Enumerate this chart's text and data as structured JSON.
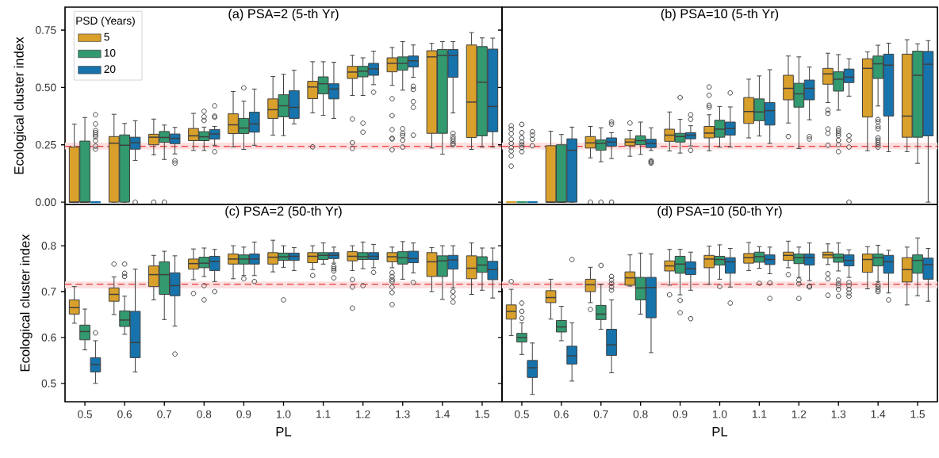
{
  "chart_data": [
    {
      "type": "box",
      "title": "(a) PSA=2 (5-th Yr)",
      "ylabel": "Ecological cluster index",
      "categories": [
        "0.5",
        "0.6",
        "0.7",
        "0.8",
        "0.9",
        "1.0",
        "1.1",
        "1.2",
        "1.3",
        "1.4",
        "1.5"
      ],
      "ylim": [
        -0.01,
        0.85
      ],
      "yticks": [
        {
          "value": 0,
          "label": "0.00"
        },
        {
          "value": 0.25,
          "label": "0.25"
        },
        {
          "value": 0.5,
          "label": "0.50"
        },
        {
          "value": 0.75,
          "label": "0.75"
        }
      ],
      "tick_labels": "y",
      "legend": "top left",
      "legend_title": "PSD (Years)",
      "ref_lines": [
        {
          "axis": "y",
          "value": 0.243,
          "color": "#e8474a",
          "line_style": "dashed"
        }
      ],
      "bands": [
        {
          "axis": "y",
          "from": 0.23,
          "to": 0.259,
          "color": "#fde0e0"
        }
      ],
      "series": [
        {
          "name": "5",
          "color": "#d9a02b",
          "boxes": [
            {
              "low": 0,
              "q1": 0,
              "median": 0,
              "q3": 0.24,
              "high": 0.34
            },
            {
              "low": 0,
              "q1": 0,
              "median": 0.257,
              "q3": 0.286,
              "high": 0.383
            },
            {
              "low": 0.206,
              "q1": 0.25,
              "median": 0.283,
              "q3": 0.296,
              "high": 0.362,
              "outliers": [
                0
              ]
            },
            {
              "low": 0.225,
              "q1": 0.268,
              "median": 0.289,
              "q3": 0.321,
              "high": 0.387
            },
            {
              "low": 0.241,
              "q1": 0.299,
              "median": 0.337,
              "q3": 0.385,
              "high": 0.482
            },
            {
              "low": 0.292,
              "q1": 0.365,
              "median": 0.403,
              "q3": 0.45,
              "high": 0.548
            },
            {
              "low": 0.389,
              "q1": 0.451,
              "median": 0.502,
              "q3": 0.527,
              "high": 0.612,
              "outliers": [
                0.241
              ]
            },
            {
              "low": 0.465,
              "q1": 0.539,
              "median": 0.567,
              "q3": 0.592,
              "high": 0.64,
              "outliers": [
                0.362,
                0.259,
                0.234
              ]
            },
            {
              "low": 0.509,
              "q1": 0.568,
              "median": 0.605,
              "q3": 0.629,
              "high": 0.674,
              "outliers": [
                0.451,
                0.377,
                0.316,
                0.279,
                0.275,
                0.228
              ]
            },
            {
              "low": 0.236,
              "q1": 0.3,
              "median": 0.633,
              "q3": 0.66,
              "high": 0.692
            },
            {
              "low": 0.23,
              "q1": 0.282,
              "median": 0.436,
              "q3": 0.685,
              "high": 0.739
            }
          ]
        },
        {
          "name": "10",
          "color": "#33996f",
          "boxes": [
            {
              "low": 0,
              "q1": 0,
              "median": 0,
              "q3": 0.266,
              "high": 0.369
            },
            {
              "low": 0,
              "q1": 0,
              "median": 0.248,
              "q3": 0.293,
              "high": 0.343
            },
            {
              "low": 0.186,
              "q1": 0.261,
              "median": 0.282,
              "q3": 0.308,
              "high": 0.336,
              "outliers": [
                0
              ]
            },
            {
              "low": 0.225,
              "q1": 0.268,
              "median": 0.285,
              "q3": 0.307,
              "high": 0.327,
              "outliers": [
                0.396,
                0.372,
                0.356
              ]
            },
            {
              "low": 0.23,
              "q1": 0.299,
              "median": 0.323,
              "q3": 0.365,
              "high": 0.44,
              "outliers": [
                0.498
              ]
            },
            {
              "low": 0.29,
              "q1": 0.372,
              "median": 0.42,
              "q3": 0.468,
              "high": 0.557
            },
            {
              "low": 0.378,
              "q1": 0.472,
              "median": 0.516,
              "q3": 0.546,
              "high": 0.612
            },
            {
              "low": 0.465,
              "q1": 0.546,
              "median": 0.571,
              "q3": 0.592,
              "high": 0.629,
              "outliers": [
                0.344,
                0.305
              ]
            },
            {
              "low": 0.488,
              "q1": 0.575,
              "median": 0.605,
              "q3": 0.633,
              "high": 0.7,
              "outliers": [
                0.32,
                0.3,
                0.29,
                0.27,
                0.24
              ]
            },
            {
              "low": 0.209,
              "q1": 0.3,
              "median": 0.64,
              "q3": 0.665,
              "high": 0.7
            },
            {
              "low": 0.24,
              "q1": 0.289,
              "median": 0.523,
              "q3": 0.678,
              "high": 0.716
            }
          ]
        },
        {
          "name": "20",
          "color": "#1673ab",
          "boxes": [
            {
              "low": 0,
              "q1": 0,
              "median": 0,
              "q3": 0,
              "high": 0,
              "outliers": [
                0.381,
                0.341,
                0.312,
                0.303,
                0.293,
                0.285,
                0.268,
                0.244,
                0.231
              ]
            },
            {
              "low": 0.182,
              "q1": 0.231,
              "median": 0.259,
              "q3": 0.283,
              "high": 0.355,
              "outliers": [
                0
              ]
            },
            {
              "low": 0.21,
              "q1": 0.255,
              "median": 0.278,
              "q3": 0.297,
              "high": 0.326,
              "outliers": [
                0.18,
                0.17
              ]
            },
            {
              "low": 0.248,
              "q1": 0.275,
              "median": 0.297,
              "q3": 0.316,
              "high": 0.33,
              "outliers": [
                0.42,
                0.375,
                0.37,
                0.22
              ]
            },
            {
              "low": 0.248,
              "q1": 0.305,
              "median": 0.341,
              "q3": 0.392,
              "high": 0.493
            },
            {
              "low": 0.341,
              "q1": 0.365,
              "median": 0.413,
              "q3": 0.486,
              "high": 0.575
            },
            {
              "low": 0.365,
              "q1": 0.45,
              "median": 0.493,
              "q3": 0.516,
              "high": 0.61
            },
            {
              "low": 0.512,
              "q1": 0.553,
              "median": 0.581,
              "q3": 0.605,
              "high": 0.658,
              "outliers": [
                0.479
              ]
            },
            {
              "low": 0.544,
              "q1": 0.589,
              "median": 0.616,
              "q3": 0.637,
              "high": 0.685,
              "outliers": [
                0.505,
                0.491,
                0.438,
                0.413,
                0.292
              ]
            },
            {
              "low": 0.389,
              "q1": 0.544,
              "median": 0.64,
              "q3": 0.665,
              "high": 0.7,
              "outliers": [
                0.3,
                0.285,
                0.275,
                0.265,
                0.255,
                0.25
              ]
            },
            {
              "low": 0.24,
              "q1": 0.307,
              "median": 0.417,
              "q3": 0.667,
              "high": 0.715
            }
          ]
        }
      ]
    },
    {
      "type": "box",
      "title": "(b) PSA=10 (5-th Yr)",
      "categories": [
        "0.5",
        "0.6",
        "0.7",
        "0.8",
        "0.9",
        "1.0",
        "1.1",
        "1.2",
        "1.3",
        "1.4",
        "1.5"
      ],
      "ylim": [
        -0.01,
        0.85
      ],
      "yticks": [
        0,
        0.25,
        0.5,
        0.75
      ],
      "tick_labels": false,
      "ref_lines": [
        {
          "axis": "y",
          "value": 0.243,
          "color": "#e8474a",
          "line_style": "dashed"
        }
      ],
      "bands": [
        {
          "axis": "y",
          "from": 0.23,
          "to": 0.259,
          "color": "#fde0e0"
        }
      ],
      "series": [
        {
          "color": "#d9a02b",
          "boxes": [
            {
              "low": 0,
              "q1": 0,
              "median": 0,
              "q3": 0,
              "high": 0,
              "outliers": [
                0.333,
                0.318,
                0.298,
                0.274,
                0.256,
                0.238,
                0.223,
                0.202,
                0.157
              ]
            },
            {
              "low": 0,
              "q1": 0,
              "median": 0,
              "q3": 0.246,
              "high": 0.309
            },
            {
              "low": 0.193,
              "q1": 0.236,
              "median": 0.258,
              "q3": 0.286,
              "high": 0.33,
              "outliers": [
                0
              ]
            },
            {
              "low": 0.2,
              "q1": 0.246,
              "median": 0.262,
              "q3": 0.276,
              "high": 0.313,
              "outliers": [
                0.345
              ]
            },
            {
              "low": 0.223,
              "q1": 0.265,
              "median": 0.292,
              "q3": 0.318,
              "high": 0.393
            },
            {
              "low": 0.224,
              "q1": 0.28,
              "median": 0.301,
              "q3": 0.33,
              "high": 0.381,
              "outliers": [
                0.502,
                0.466,
                0.422,
                0.413
              ]
            },
            {
              "low": 0.28,
              "q1": 0.343,
              "median": 0.395,
              "q3": 0.456,
              "high": 0.536
            },
            {
              "low": 0.345,
              "q1": 0.446,
              "median": 0.496,
              "q3": 0.553,
              "high": 0.637,
              "outliers": [
                0.286
              ]
            },
            {
              "low": 0.434,
              "q1": 0.514,
              "median": 0.559,
              "q3": 0.583,
              "high": 0.649,
              "outliers": [
                0.402,
                0.387,
                0.319,
                0.3,
                0.248
              ]
            },
            {
              "low": 0.224,
              "q1": 0.371,
              "median": 0.583,
              "q3": 0.625,
              "high": 0.655
            },
            {
              "low": 0.22,
              "q1": 0.283,
              "median": 0.375,
              "q3": 0.645,
              "high": 0.708
            }
          ]
        },
        {
          "color": "#33996f",
          "boxes": [
            {
              "low": 0,
              "q1": 0,
              "median": 0,
              "q3": 0,
              "high": 0,
              "outliers": [
                0.339,
                0.303,
                0.28,
                0.262,
                0.25,
                0.238,
                0.22
              ]
            },
            {
              "low": 0,
              "q1": 0,
              "median": 0,
              "q3": 0.25,
              "high": 0.295
            },
            {
              "low": 0.176,
              "q1": 0.226,
              "median": 0.256,
              "q3": 0.271,
              "high": 0.324,
              "outliers": [
                0
              ]
            },
            {
              "low": 0.208,
              "q1": 0.25,
              "median": 0.268,
              "q3": 0.289,
              "high": 0.349
            },
            {
              "low": 0.214,
              "q1": 0.262,
              "median": 0.286,
              "q3": 0.3,
              "high": 0.361,
              "outliers": [
                0.456
              ]
            },
            {
              "low": 0.24,
              "q1": 0.283,
              "median": 0.318,
              "q3": 0.357,
              "high": 0.417
            },
            {
              "low": 0.288,
              "q1": 0.355,
              "median": 0.393,
              "q3": 0.45,
              "high": 0.55
            },
            {
              "low": 0.234,
              "q1": 0.414,
              "median": 0.472,
              "q3": 0.518,
              "high": 0.633
            },
            {
              "low": 0.401,
              "q1": 0.484,
              "median": 0.536,
              "q3": 0.568,
              "high": 0.643,
              "outliers": [
                0.32,
                0.31,
                0.3,
                0.29,
                0.27,
                0.25,
                0.22
              ]
            },
            {
              "low": 0.419,
              "q1": 0.539,
              "median": 0.603,
              "q3": 0.637,
              "high": 0.684,
              "outliers": [
                0.36,
                0.35,
                0.33,
                0.32,
                0.28,
                0.27,
                0.26,
                0.25,
                0.24
              ]
            },
            {
              "low": 0.169,
              "q1": 0.283,
              "median": 0.553,
              "q3": 0.658,
              "high": 0.69
            }
          ]
        },
        {
          "color": "#1673ab",
          "boxes": [
            {
              "low": 0,
              "q1": 0,
              "median": 0,
              "q3": 0,
              "high": 0,
              "outliers": [
                0.307,
                0.292,
                0.274,
                0.246
              ]
            },
            {
              "low": 0,
              "q1": 0,
              "median": 0.226,
              "q3": 0.276,
              "high": 0.327
            },
            {
              "low": 0.19,
              "q1": 0.244,
              "median": 0.262,
              "q3": 0.28,
              "high": 0.303,
              "outliers": [
                0.35,
                0.34,
                0
              ]
            },
            {
              "low": 0.225,
              "q1": 0.238,
              "median": 0.256,
              "q3": 0.274,
              "high": 0.324,
              "outliers": [
                0.18,
                0.175,
                0.17
              ]
            },
            {
              "low": 0.245,
              "q1": 0.276,
              "median": 0.292,
              "q3": 0.303,
              "high": 0.333,
              "outliers": [
                0.381,
                0.361,
                0.226
              ]
            },
            {
              "low": 0.24,
              "q1": 0.292,
              "median": 0.321,
              "q3": 0.349,
              "high": 0.415,
              "outliers": [
                0.476
              ]
            },
            {
              "low": 0.256,
              "q1": 0.336,
              "median": 0.399,
              "q3": 0.434,
              "high": 0.577
            },
            {
              "low": 0.359,
              "q1": 0.446,
              "median": 0.496,
              "q3": 0.532,
              "high": 0.589,
              "outliers": [
                0.286,
                0.275
              ]
            },
            {
              "low": 0.462,
              "q1": 0.521,
              "median": 0.545,
              "q3": 0.58,
              "high": 0.625,
              "outliers": [
                0.29,
                0.27,
                0.24,
                0
              ]
            },
            {
              "low": 0.22,
              "q1": 0.375,
              "median": 0.597,
              "q3": 0.645,
              "high": 0.693
            },
            {
              "low": 0,
              "q1": 0.289,
              "median": 0.601,
              "q3": 0.657,
              "high": 0.704
            }
          ]
        }
      ]
    },
    {
      "type": "box",
      "title": "(c) PSA=2 (50-th Yr)",
      "xlabel": "PL",
      "ylabel": "Ecological cluster index",
      "categories": [
        "0.5",
        "0.6",
        "0.7",
        "0.8",
        "0.9",
        "1.0",
        "1.1",
        "1.2",
        "1.3",
        "1.4",
        "1.5"
      ],
      "ylim": [
        0.46,
        0.89
      ],
      "yticks": [
        0.5,
        0.6,
        0.7,
        0.8
      ],
      "ref_lines": [
        {
          "axis": "y",
          "value": 0.716,
          "color": "#e8474a",
          "line_style": "dashed"
        }
      ],
      "bands": [
        {
          "axis": "y",
          "from": 0.707,
          "to": 0.722,
          "color": "#fde0e0"
        }
      ],
      "series": [
        {
          "color": "#d9a02b",
          "boxes": [
            {
              "low": 0.631,
              "q1": 0.651,
              "median": 0.665,
              "q3": 0.682,
              "high": 0.711
            },
            {
              "low": 0.65,
              "q1": 0.679,
              "median": 0.694,
              "q3": 0.708,
              "high": 0.732,
              "outliers": [
                0.76
              ]
            },
            {
              "low": 0.682,
              "q1": 0.711,
              "median": 0.737,
              "q3": 0.756,
              "high": 0.779
            },
            {
              "low": 0.726,
              "q1": 0.749,
              "median": 0.761,
              "q3": 0.771,
              "high": 0.793,
              "outliers": [
                0.696
              ]
            },
            {
              "low": 0.728,
              "q1": 0.76,
              "median": 0.771,
              "q3": 0.782,
              "high": 0.8
            },
            {
              "low": 0.743,
              "q1": 0.76,
              "median": 0.775,
              "q3": 0.785,
              "high": 0.812
            },
            {
              "low": 0.748,
              "q1": 0.763,
              "median": 0.777,
              "q3": 0.785,
              "high": 0.8,
              "outliers": [
                0.735
              ]
            },
            {
              "low": 0.746,
              "q1": 0.767,
              "median": 0.777,
              "q3": 0.787,
              "high": 0.8,
              "outliers": [
                0.726,
                0.71,
                0.664
              ]
            },
            {
              "low": 0.752,
              "q1": 0.765,
              "median": 0.776,
              "q3": 0.785,
              "high": 0.797,
              "outliers": [
                0.741,
                0.733,
                0.726,
                0.722,
                0.71,
                0.698,
                0.672
              ]
            },
            {
              "low": 0.7,
              "q1": 0.733,
              "median": 0.765,
              "q3": 0.785,
              "high": 0.796
            },
            {
              "low": 0.694,
              "q1": 0.728,
              "median": 0.751,
              "q3": 0.778,
              "high": 0.806
            }
          ]
        },
        {
          "color": "#33996f",
          "boxes": [
            {
              "low": 0.573,
              "q1": 0.595,
              "median": 0.613,
              "q3": 0.627,
              "high": 0.662
            },
            {
              "low": 0.607,
              "q1": 0.624,
              "median": 0.638,
              "q3": 0.658,
              "high": 0.69,
              "outliers": [
                0.76,
                0.74,
                0.733
              ]
            },
            {
              "low": 0.639,
              "q1": 0.694,
              "median": 0.737,
              "q3": 0.765,
              "high": 0.788
            },
            {
              "low": 0.733,
              "q1": 0.752,
              "median": 0.762,
              "q3": 0.775,
              "high": 0.795,
              "outliers": [
                0.713,
                0.682
              ]
            },
            {
              "low": 0.735,
              "q1": 0.76,
              "median": 0.771,
              "q3": 0.78,
              "high": 0.797,
              "outliers": [
                0.728
              ]
            },
            {
              "low": 0.753,
              "q1": 0.768,
              "median": 0.776,
              "q3": 0.784,
              "high": 0.8,
              "outliers": [
                0.682
              ]
            },
            {
              "low": 0.76,
              "q1": 0.77,
              "median": 0.779,
              "q3": 0.785,
              "high": 0.806
            },
            {
              "low": 0.75,
              "q1": 0.77,
              "median": 0.776,
              "q3": 0.785,
              "high": 0.808,
              "outliers": [
                0.713
              ]
            },
            {
              "low": 0.727,
              "q1": 0.76,
              "median": 0.774,
              "q3": 0.787,
              "high": 0.809
            },
            {
              "low": 0.683,
              "q1": 0.733,
              "median": 0.767,
              "q3": 0.778,
              "high": 0.8
            },
            {
              "low": 0.703,
              "q1": 0.742,
              "median": 0.758,
              "q3": 0.776,
              "high": 0.795
            }
          ]
        },
        {
          "color": "#1673ab",
          "boxes": [
            {
              "low": 0.5,
              "q1": 0.525,
              "median": 0.541,
              "q3": 0.556,
              "high": 0.593,
              "outliers": [
                0.61
              ]
            },
            {
              "low": 0.525,
              "q1": 0.556,
              "median": 0.589,
              "q3": 0.657,
              "high": 0.749
            },
            {
              "low": 0.625,
              "q1": 0.691,
              "median": 0.713,
              "q3": 0.741,
              "high": 0.778,
              "outliers": [
                0.564
              ]
            },
            {
              "low": 0.722,
              "q1": 0.746,
              "median": 0.766,
              "q3": 0.777,
              "high": 0.792,
              "outliers": [
                0.7
              ]
            },
            {
              "low": 0.735,
              "q1": 0.76,
              "median": 0.771,
              "q3": 0.782,
              "high": 0.808,
              "outliers": [
                0.722
              ]
            },
            {
              "low": 0.746,
              "q1": 0.768,
              "median": 0.777,
              "q3": 0.784,
              "high": 0.796
            },
            {
              "low": 0.762,
              "q1": 0.772,
              "median": 0.779,
              "q3": 0.785,
              "high": 0.797,
              "outliers": [
                0.755,
                0.75,
                0.745,
                0.73
              ]
            },
            {
              "low": 0.752,
              "q1": 0.77,
              "median": 0.777,
              "q3": 0.785,
              "high": 0.803,
              "outliers": [
                0.742
              ]
            },
            {
              "low": 0.741,
              "q1": 0.763,
              "median": 0.772,
              "q3": 0.788,
              "high": 0.806,
              "outliers": [
                0.72
              ]
            },
            {
              "low": 0.708,
              "q1": 0.749,
              "median": 0.769,
              "q3": 0.779,
              "high": 0.8,
              "outliers": [
                0.7,
                0.689,
                0.677
              ]
            },
            {
              "low": 0.686,
              "q1": 0.726,
              "median": 0.748,
              "q3": 0.766,
              "high": 0.795
            }
          ]
        }
      ]
    },
    {
      "type": "box",
      "title": "(d) PSA=10 (50-th Yr)",
      "xlabel": "PL",
      "categories": [
        "0.5",
        "0.6",
        "0.7",
        "0.8",
        "0.9",
        "1.0",
        "1.1",
        "1.2",
        "1.3",
        "1.4",
        "1.5"
      ],
      "ylim": [
        0.46,
        0.89
      ],
      "yticks": [
        0.5,
        0.6,
        0.7,
        0.8
      ],
      "tick_labels": "x",
      "ref_lines": [
        {
          "axis": "y",
          "value": 0.716,
          "color": "#e8474a",
          "line_style": "dashed"
        }
      ],
      "bands": [
        {
          "axis": "y",
          "from": 0.707,
          "to": 0.722,
          "color": "#fde0e0"
        }
      ],
      "series": [
        {
          "color": "#d9a02b",
          "boxes": [
            {
              "low": 0.604,
              "q1": 0.64,
              "median": 0.657,
              "q3": 0.671,
              "high": 0.705,
              "outliers": [
                0.722
              ]
            },
            {
              "low": 0.64,
              "q1": 0.676,
              "median": 0.687,
              "q3": 0.702,
              "high": 0.727
            },
            {
              "low": 0.676,
              "q1": 0.7,
              "median": 0.715,
              "q3": 0.727,
              "high": 0.753,
              "outliers": [
                0.661
              ]
            },
            {
              "low": 0.712,
              "q1": 0.714,
              "median": 0.73,
              "q3": 0.743,
              "high": 0.78
            },
            {
              "low": 0.714,
              "q1": 0.745,
              "median": 0.756,
              "q3": 0.767,
              "high": 0.792,
              "outliers": [
                0.693
              ]
            },
            {
              "low": 0.716,
              "q1": 0.752,
              "median": 0.771,
              "q3": 0.779,
              "high": 0.799
            },
            {
              "low": 0.746,
              "q1": 0.762,
              "median": 0.774,
              "q3": 0.783,
              "high": 0.807
            },
            {
              "low": 0.752,
              "q1": 0.768,
              "median": 0.779,
              "q3": 0.786,
              "high": 0.81,
              "outliers": [
                0.737
              ]
            },
            {
              "low": 0.759,
              "q1": 0.773,
              "median": 0.78,
              "q3": 0.786,
              "high": 0.804,
              "outliers": [
                0.739,
                0.728,
                0.692
              ]
            },
            {
              "low": 0.706,
              "q1": 0.742,
              "median": 0.77,
              "q3": 0.782,
              "high": 0.798
            },
            {
              "low": 0.671,
              "q1": 0.721,
              "median": 0.748,
              "q3": 0.774,
              "high": 0.797
            }
          ]
        },
        {
          "color": "#33996f",
          "boxes": [
            {
              "low": 0.563,
              "q1": 0.59,
              "median": 0.6,
              "q3": 0.609,
              "high": 0.632,
              "outliers": [
                0.675,
                0.657,
                0.642
              ]
            },
            {
              "low": 0.593,
              "q1": 0.612,
              "median": 0.623,
              "q3": 0.637,
              "high": 0.668
            },
            {
              "low": 0.618,
              "q1": 0.639,
              "median": 0.651,
              "q3": 0.67,
              "high": 0.716,
              "outliers": [
                0.757
              ]
            },
            {
              "low": 0.651,
              "q1": 0.682,
              "median": 0.708,
              "q3": 0.731,
              "high": 0.784
            },
            {
              "low": 0.693,
              "q1": 0.74,
              "median": 0.76,
              "q3": 0.777,
              "high": 0.792,
              "outliers": [
                0.681,
                0.654
              ]
            },
            {
              "low": 0.727,
              "q1": 0.758,
              "median": 0.77,
              "q3": 0.777,
              "high": 0.802,
              "outliers": [
                0.711
              ]
            },
            {
              "low": 0.751,
              "q1": 0.764,
              "median": 0.776,
              "q3": 0.786,
              "high": 0.798,
              "outliers": [
                0.718
              ]
            },
            {
              "low": 0.731,
              "q1": 0.761,
              "median": 0.774,
              "q3": 0.782,
              "high": 0.797,
              "outliers": [
                0.725,
                0.717,
                0.685
              ]
            },
            {
              "low": 0.745,
              "q1": 0.764,
              "median": 0.774,
              "q3": 0.782,
              "high": 0.806,
              "outliers": [
                0.725,
                0.718,
                0.713,
                0.705,
                0.69
              ]
            },
            {
              "low": 0.722,
              "q1": 0.756,
              "median": 0.774,
              "q3": 0.782,
              "high": 0.801,
              "outliers": [
                0.715,
                0.71,
                0.704,
                0.7
              ]
            },
            {
              "low": 0.691,
              "q1": 0.74,
              "median": 0.768,
              "q3": 0.78,
              "high": 0.817
            }
          ]
        },
        {
          "color": "#1673ab",
          "boxes": [
            {
              "low": 0.476,
              "q1": 0.513,
              "median": 0.534,
              "q3": 0.55,
              "high": 0.588
            },
            {
              "low": 0.505,
              "q1": 0.542,
              "median": 0.56,
              "q3": 0.581,
              "high": 0.632,
              "outliers": [
                0.77
              ]
            },
            {
              "low": 0.523,
              "q1": 0.561,
              "median": 0.584,
              "q3": 0.618,
              "high": 0.682,
              "outliers": [
                0.733,
                0.725,
                0.718,
                0.71,
                0.703
              ]
            },
            {
              "low": 0.567,
              "q1": 0.643,
              "median": 0.709,
              "q3": 0.731,
              "high": 0.782
            },
            {
              "low": 0.703,
              "q1": 0.737,
              "median": 0.75,
              "q3": 0.765,
              "high": 0.786,
              "outliers": [
                0.641
              ]
            },
            {
              "low": 0.71,
              "q1": 0.74,
              "median": 0.765,
              "q3": 0.774,
              "high": 0.794,
              "outliers": [
                0.675
              ]
            },
            {
              "low": 0.739,
              "q1": 0.759,
              "median": 0.77,
              "q3": 0.78,
              "high": 0.797,
              "outliers": [
                0.719,
                0.685
              ]
            },
            {
              "low": 0.724,
              "q1": 0.758,
              "median": 0.774,
              "q3": 0.782,
              "high": 0.806,
              "outliers": [
                0.712,
                0.71
              ]
            },
            {
              "low": 0.731,
              "q1": 0.756,
              "median": 0.768,
              "q3": 0.78,
              "high": 0.791,
              "outliers": [
                0.72,
                0.713,
                0.705,
                0.697,
                0.69
              ]
            },
            {
              "low": 0.697,
              "q1": 0.74,
              "median": 0.765,
              "q3": 0.779,
              "high": 0.79,
              "outliers": [
                0.682
              ]
            },
            {
              "low": 0.679,
              "q1": 0.727,
              "median": 0.759,
              "q3": 0.773,
              "high": 0.794
            }
          ]
        }
      ]
    }
  ]
}
